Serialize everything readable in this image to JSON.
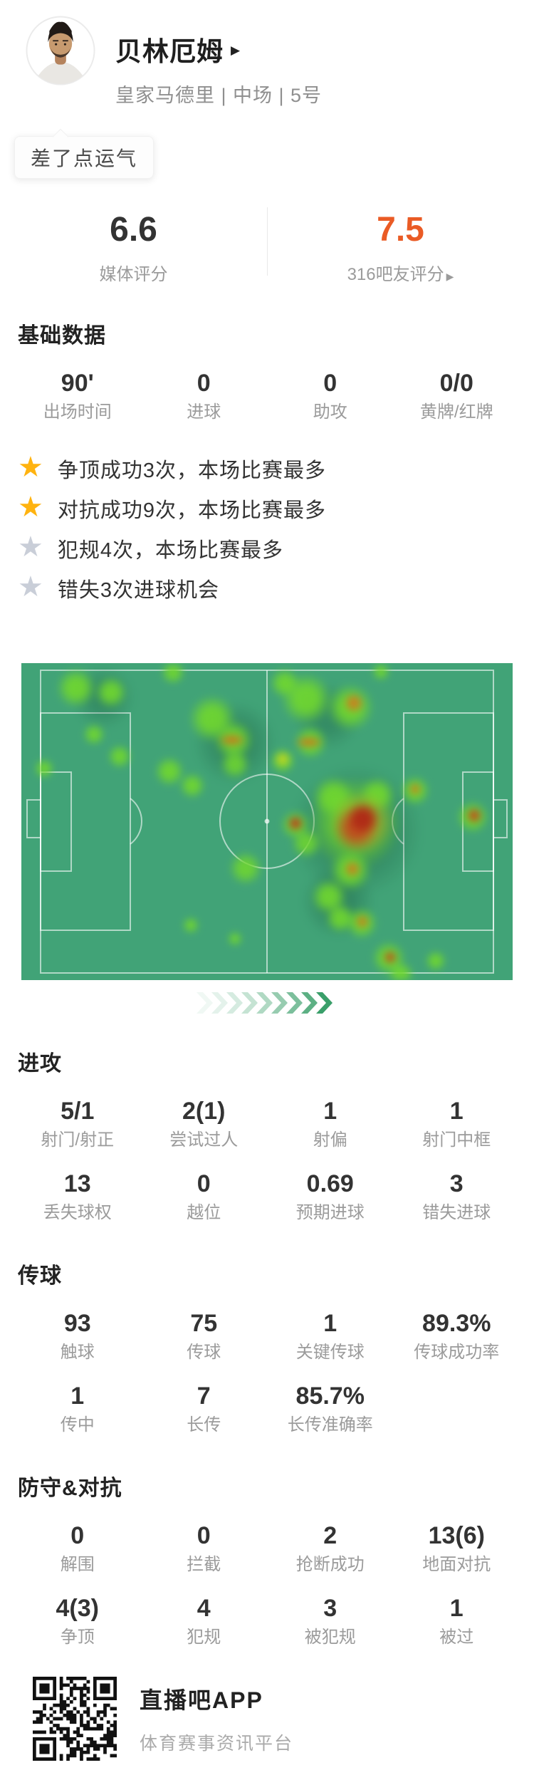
{
  "header": {
    "player_name": "贝林厄姆",
    "team_info": "皇家马德里 | 中场 | 5号",
    "tag": "差了点运气"
  },
  "ratings": {
    "media": {
      "value": "6.6",
      "label": "媒体评分"
    },
    "fans": {
      "value": "7.5",
      "label": "316吧友评分",
      "color": "#ea5b25"
    }
  },
  "highlights": [
    {
      "star": "gold",
      "text": "争顶成功3次，本场比赛最多"
    },
    {
      "star": "gold",
      "text": "对抗成功9次，本场比赛最多"
    },
    {
      "star": "gray",
      "text": "犯规4次，本场比赛最多"
    },
    {
      "star": "gray",
      "text": "错失3次进球机会"
    }
  ],
  "sections": {
    "basic": {
      "title": "基础数据",
      "stats": [
        {
          "value": "90'",
          "label": "出场时间"
        },
        {
          "value": "0",
          "label": "进球"
        },
        {
          "value": "0",
          "label": "助攻"
        },
        {
          "value": "0/0",
          "label": "黄牌/红牌"
        }
      ]
    },
    "attack": {
      "title": "进攻",
      "stats": [
        {
          "value": "5/1",
          "label": "射门/射正"
        },
        {
          "value": "2(1)",
          "label": "尝试过人"
        },
        {
          "value": "1",
          "label": "射偏"
        },
        {
          "value": "1",
          "label": "射门中框"
        },
        {
          "value": "13",
          "label": "丢失球权"
        },
        {
          "value": "0",
          "label": "越位"
        },
        {
          "value": "0.69",
          "label": "预期进球"
        },
        {
          "value": "3",
          "label": "错失进球"
        }
      ]
    },
    "passing": {
      "title": "传球",
      "stats": [
        {
          "value": "93",
          "label": "触球"
        },
        {
          "value": "75",
          "label": "传球"
        },
        {
          "value": "1",
          "label": "关键传球"
        },
        {
          "value": "89.3%",
          "label": "传球成功率"
        },
        {
          "value": "1",
          "label": "传中"
        },
        {
          "value": "7",
          "label": "长传"
        },
        {
          "value": "85.7%",
          "label": "长传准确率"
        },
        {
          "value": "",
          "label": ""
        }
      ]
    },
    "defense": {
      "title": "防守&对抗",
      "stats": [
        {
          "value": "0",
          "label": "解围"
        },
        {
          "value": "0",
          "label": "拦截"
        },
        {
          "value": "2",
          "label": "抢断成功"
        },
        {
          "value": "13(6)",
          "label": "地面对抗"
        },
        {
          "value": "4(3)",
          "label": "争顶"
        },
        {
          "value": "4",
          "label": "犯规"
        },
        {
          "value": "3",
          "label": "被犯规"
        },
        {
          "value": "1",
          "label": "被过"
        }
      ]
    }
  },
  "footer": {
    "app_name": "直播吧APP",
    "app_desc": "体育赛事资讯平台"
  },
  "colors": {
    "fans_rating_orange": "#ea5b25",
    "star_gold": "#ffb310",
    "star_gray": "#c9ced8",
    "pitch_green": "#41a377",
    "heat_red": "#aa2a19",
    "chevron_green": "#2f9a62"
  }
}
